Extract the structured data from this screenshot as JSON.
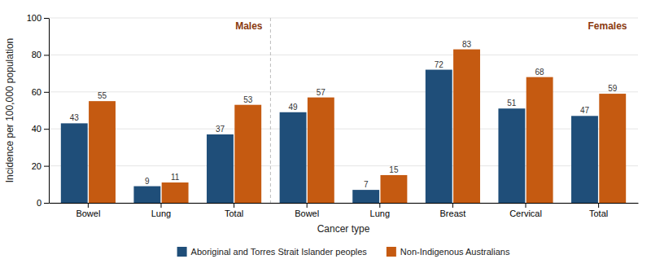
{
  "chart_data": {
    "type": "bar",
    "categories": [
      "Bowel",
      "Lung",
      "Total",
      "Bowel",
      "Lung",
      "Breast",
      "Cervical",
      "Total"
    ],
    "series": [
      {
        "name": "Aboriginal and Torres Strait Islander peoples",
        "color": "#1F4E79",
        "values": [
          43,
          9,
          37,
          49,
          7,
          72,
          51,
          47
        ]
      },
      {
        "name": "Non-Indigenous Australians",
        "color": "#C55A11",
        "values": [
          55,
          11,
          53,
          57,
          15,
          83,
          68,
          59
        ]
      }
    ],
    "xlabel": "Cancer type",
    "ylabel": "Incidence per 100,000 population",
    "ylim": [
      0,
      100
    ],
    "yticks": [
      0,
      20,
      40,
      60,
      80,
      100
    ],
    "annotations": [
      {
        "text": "Males",
        "color": "#8B3A0F"
      },
      {
        "text": "Females",
        "color": "#8B3A0F"
      }
    ],
    "data_labels": true,
    "grid": true,
    "legend": "bottom"
  }
}
